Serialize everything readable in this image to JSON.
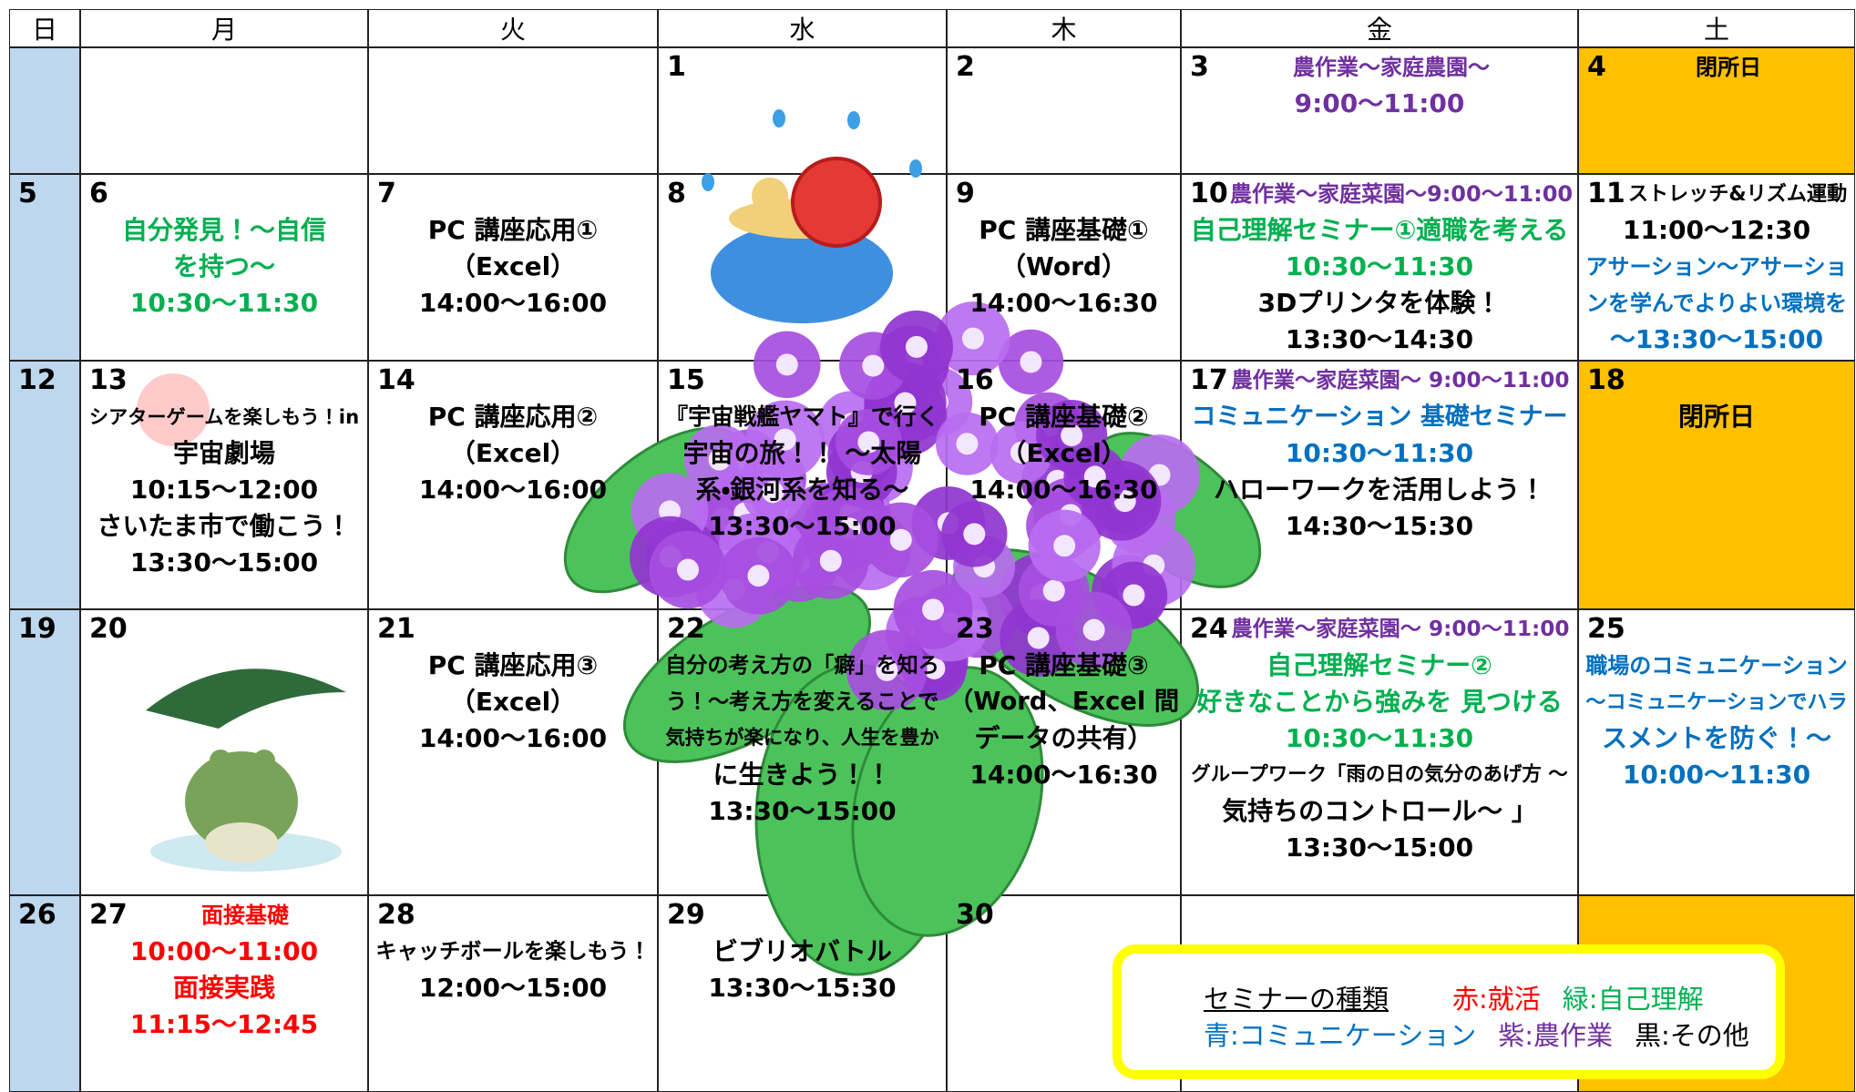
{
  "header": {
    "days": [
      "日",
      "月",
      "火",
      "水",
      "木",
      "金",
      "土"
    ]
  },
  "weeks": [
    {
      "cells": [
        {},
        {},
        {},
        {
          "date": "1"
        },
        {
          "date": "2"
        },
        {
          "date": "3",
          "heading": {
            "text": "農作業～家庭農園～",
            "color": "#7030a0"
          },
          "lines": [
            {
              "text": "9:00～11:00",
              "color": "#7030a0"
            }
          ]
        },
        {
          "date": "4",
          "closed": true,
          "heading": {
            "text": "閉所日",
            "color": "#000000"
          }
        }
      ]
    },
    {
      "cells": [
        {
          "date": "5"
        },
        {
          "date": "6",
          "lines": [
            {
              "text": "自分発見！～自信",
              "color": "#00b050"
            },
            {
              "text": "を持つ～",
              "color": "#00b050"
            },
            {
              "text": "10:30～11:30",
              "color": "#00b050"
            }
          ]
        },
        {
          "date": "7",
          "lines": [
            {
              "text": "PC 講座応用①",
              "color": "#000000"
            },
            {
              "text": "（Excel）",
              "color": "#000000"
            },
            {
              "text": "14:00～16:00",
              "color": "#000000"
            }
          ]
        },
        {
          "date": "8"
        },
        {
          "date": "9",
          "lines": [
            {
              "text": "PC 講座基礎①",
              "color": "#000000"
            },
            {
              "text": "（Word）",
              "color": "#000000"
            },
            {
              "text": "14:00～16:30",
              "color": "#000000"
            }
          ]
        },
        {
          "date": "10",
          "heading": {
            "text": "農作業～家庭菜園～9:00～11:00",
            "color": "#7030a0"
          },
          "lines": [
            {
              "text": "自己理解セミナー①適職を考える",
              "color": "#00b050"
            },
            {
              "text": "10:30～11:30",
              "color": "#00b050"
            },
            {
              "text": "3Dプリンタを体験！",
              "color": "#000000"
            },
            {
              "text": "13:30～14:30",
              "color": "#000000"
            }
          ]
        },
        {
          "date": "11",
          "heading": {
            "text": "ストレッチ&リズム運動",
            "color": "#000000"
          },
          "lines": [
            {
              "text": "11:00～12:30",
              "color": "#000000"
            },
            {
              "text": "アサーション～アサーショ",
              "color": "#0070c0"
            },
            {
              "text": "ンを学んでよりよい環境を",
              "color": "#0070c0"
            },
            {
              "text": "～13:30～15:00",
              "color": "#0070c0"
            }
          ]
        }
      ]
    },
    {
      "cells": [
        {
          "date": "12"
        },
        {
          "date": "13",
          "lines": [
            {
              "text": "シアターゲームを楽しもう！in",
              "color": "#000000"
            },
            {
              "text": "宇宙劇場",
              "color": "#000000"
            },
            {
              "text": "10:15～12:00",
              "color": "#000000"
            },
            {
              "text": "さいたま市で働こう！",
              "color": "#000000"
            },
            {
              "text": "13:30～15:00",
              "color": "#000000"
            }
          ]
        },
        {
          "date": "14",
          "lines": [
            {
              "text": "PC 講座応用②",
              "color": "#000000"
            },
            {
              "text": "（Excel）",
              "color": "#000000"
            },
            {
              "text": "14:00～16:00",
              "color": "#000000"
            }
          ]
        },
        {
          "date": "15",
          "lines": [
            {
              "text": "『宇宙戦艦ヤマト』で行く",
              "color": "#000000"
            },
            {
              "text": "宇宙の旅！！ ～太陽",
              "color": "#000000"
            },
            {
              "text": "系・銀河系を知る～",
              "color": "#000000"
            },
            {
              "text": "13:30～15:00",
              "color": "#000000"
            }
          ]
        },
        {
          "date": "16",
          "lines": [
            {
              "text": "PC 講座基礎②",
              "color": "#000000"
            },
            {
              "text": "（Excel）",
              "color": "#000000"
            },
            {
              "text": "14:00～16:30",
              "color": "#000000"
            }
          ]
        },
        {
          "date": "17",
          "heading": {
            "text": "農作業～家庭菜園～ 9:00～11:00",
            "color": "#7030a0"
          },
          "lines": [
            {
              "text": "コミュニケーション 基礎セミナー",
              "color": "#0070c0"
            },
            {
              "text": "10:30～11:30",
              "color": "#0070c0"
            },
            {
              "text": "ハローワークを活用しよう！",
              "color": "#000000"
            },
            {
              "text": "14:30～15:30",
              "color": "#000000"
            }
          ]
        },
        {
          "date": "18",
          "closed": true,
          "lines": [
            {
              "text": "閉所日",
              "color": "#000000"
            }
          ]
        }
      ]
    },
    {
      "cells": [
        {
          "date": "19"
        },
        {
          "date": "20"
        },
        {
          "date": "21",
          "lines": [
            {
              "text": "PC 講座応用③",
              "color": "#000000"
            },
            {
              "text": "（Excel）",
              "color": "#000000"
            },
            {
              "text": "14:00～16:00",
              "color": "#000000"
            }
          ]
        },
        {
          "date": "22",
          "lines": [
            {
              "text": "自分の考え方の「癖」を知ろ",
              "color": "#000000"
            },
            {
              "text": "う！～考え方を変えることで",
              "color": "#000000"
            },
            {
              "text": "気持ちが楽になり、人生を豊か",
              "color": "#000000"
            },
            {
              "text": "に生きよう！！",
              "color": "#000000"
            },
            {
              "text": "13:30～15:00",
              "color": "#000000"
            }
          ]
        },
        {
          "date": "23",
          "lines": [
            {
              "text": "PC 講座基礎③",
              "color": "#000000"
            },
            {
              "text": "（Word、Excel 間",
              "color": "#000000"
            },
            {
              "text": "データの共有）",
              "color": "#000000"
            },
            {
              "text": "14:00～16:30",
              "color": "#000000"
            }
          ]
        },
        {
          "date": "24",
          "heading": {
            "text": "農作業～家庭菜園～ 9:00～11:00",
            "color": "#7030a0"
          },
          "lines": [
            {
              "text": "自己理解セミナー②",
              "color": "#00b050"
            },
            {
              "text": "好きなことから強みを 見つける",
              "color": "#00b050"
            },
            {
              "text": "10:30～11:30",
              "color": "#00b050"
            },
            {
              "text": "グループワーク「雨の日の気分のあげ方 ～",
              "color": "#000000"
            },
            {
              "text": "気持ちのコントロール～ 」",
              "color": "#000000"
            },
            {
              "text": "13:30～15:00",
              "color": "#000000"
            }
          ]
        },
        {
          "date": "25",
          "lines": [
            {
              "text": "職場のコミュニケーション",
              "color": "#0070c0"
            },
            {
              "text": "～コミュニケーションでハラ",
              "color": "#0070c0"
            },
            {
              "text": "スメントを防ぐ！～",
              "color": "#0070c0"
            },
            {
              "text": "10:00～11:30",
              "color": "#0070c0"
            }
          ]
        }
      ]
    },
    {
      "cells": [
        {
          "date": "26"
        },
        {
          "date": "27",
          "heading": {
            "text": "面接基礎",
            "color": "#ff0000"
          },
          "lines": [
            {
              "text": "10:00～11:00",
              "color": "#ff0000"
            },
            {
              "text": "面接実践",
              "color": "#ff0000"
            },
            {
              "text": "11:15～12:45",
              "color": "#ff0000"
            }
          ]
        },
        {
          "date": "28",
          "lines": [
            {
              "text": "キャッチボールを楽しもう！",
              "color": "#000000"
            },
            {
              "text": "12:00～15:00",
              "color": "#000000"
            }
          ]
        },
        {
          "date": "29",
          "lines": [
            {
              "text": "ビブリオバトル",
              "color": "#000000"
            },
            {
              "text": "13:30～15:30",
              "color": "#000000"
            }
          ]
        },
        {
          "date": "30"
        },
        {},
        {
          "closed": true
        }
      ]
    }
  ],
  "legend": {
    "title": "セミナーの種類",
    "rows": [
      [
        {
          "text": "赤:就活",
          "color": "#ff0000"
        },
        {
          "text": "緑:自己理解",
          "color": "#00b050"
        }
      ],
      [
        {
          "text": "青:コミュニケーション",
          "color": "#0070c0"
        },
        {
          "text": "紫:農作業",
          "color": "#7030a0"
        },
        {
          "text": "黒:その他",
          "color": "#000000"
        }
      ]
    ]
  }
}
